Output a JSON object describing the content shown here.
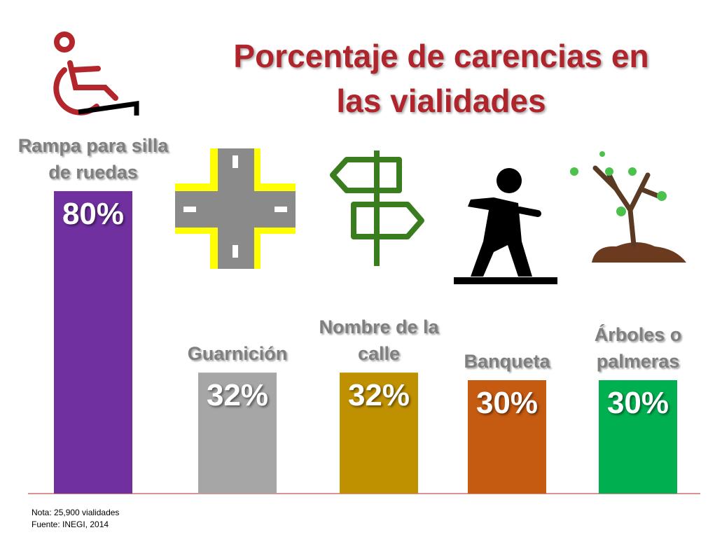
{
  "chart_data": {
    "type": "bar",
    "title": "Porcentaje de carencias en las vialidades",
    "categories": [
      "Rampa para silla de ruedas",
      "Guarnición",
      "Nombre de la calle",
      "Banqueta",
      "Árboles o palmeras"
    ],
    "values": [
      80,
      32,
      32,
      30,
      30
    ],
    "value_labels": [
      "80%",
      "32%",
      "32%",
      "30%",
      "30%"
    ],
    "colors": [
      "#7030a0",
      "#a6a6a6",
      "#bf9000",
      "#c55a11",
      "#00b050"
    ],
    "note": "Nota: 25,900 vialidades",
    "source": "Fuente: INEGI, 2014"
  }
}
